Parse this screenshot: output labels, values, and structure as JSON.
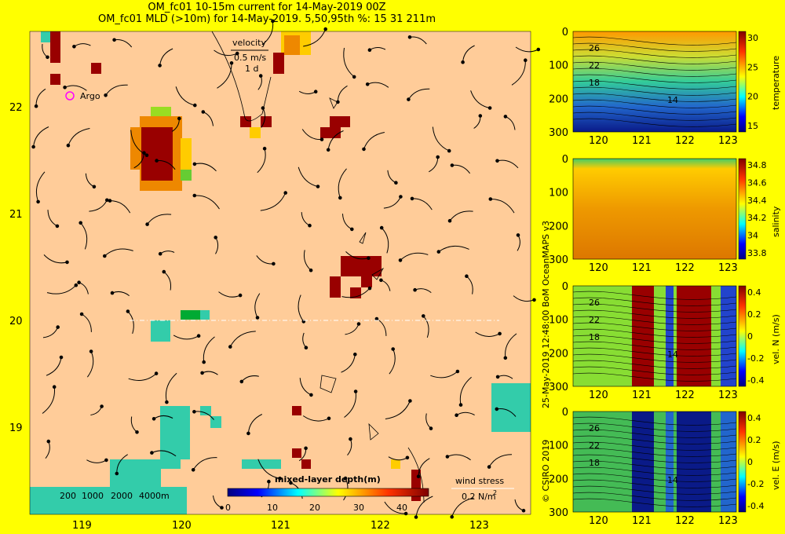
{
  "titles": {
    "line1": "OM_fc01 10-15m current for 14-May-2019 00Z",
    "line2": "OM_fc01 MLD (>10m) for 14-May-2019. 5,50,95th %: 15   31  211m"
  },
  "map": {
    "x_ticks": [
      "119",
      "120",
      "121",
      "122",
      "123"
    ],
    "y_ticks": [
      "22",
      "21",
      "20",
      "19"
    ],
    "velocity_label": "velocity",
    "velocity_scale": "0.5 m/s",
    "velocity_time": "1 d",
    "argo_label": "Argo",
    "wind_label": "wind stress",
    "wind_scale": "0.2 N/m",
    "wind_exp": "2",
    "depth_legend": [
      "200",
      "1000",
      "2000",
      "4000m"
    ],
    "colorbar_title": "mixed-layer depth(m)",
    "colorbar_ticks": [
      "0",
      "10",
      "20",
      "30",
      "40"
    ],
    "colors": {
      "land": "#ffff00",
      "ocean": "#ffcc99",
      "shallow": "#33ccaa",
      "deep": "#990000"
    }
  },
  "side_note": "25-May-2019 12:48:00 BoM OceanMAPS v3",
  "copyright": "© CSIRO 2019",
  "chart_data": [
    {
      "type": "heatmap",
      "ylabel_right": "temperature",
      "x_ticks": [
        "120",
        "121",
        "122",
        "123"
      ],
      "y_ticks": [
        "0",
        "100",
        "200",
        "300"
      ],
      "cbar_ticks": [
        "30",
        "25",
        "20",
        "15"
      ],
      "contour_labels": [
        "26",
        "22",
        "18",
        "14"
      ]
    },
    {
      "type": "heatmap",
      "ylabel_right": "salinity",
      "x_ticks": [
        "120",
        "121",
        "122",
        "123"
      ],
      "y_ticks": [
        "0",
        "100",
        "200",
        "300"
      ],
      "cbar_ticks": [
        "34.8",
        "34.6",
        "34.4",
        "34.2",
        "34",
        "33.8"
      ],
      "contour_labels": []
    },
    {
      "type": "heatmap",
      "ylabel_right": "vel. N (m/s)",
      "x_ticks": [
        "120",
        "121",
        "122",
        "123"
      ],
      "y_ticks": [
        "0",
        "100",
        "200",
        "300"
      ],
      "cbar_ticks": [
        "0.4",
        "0.2",
        "0",
        "-0.2",
        "-0.4"
      ],
      "contour_labels": [
        "26",
        "22",
        "18",
        "14"
      ]
    },
    {
      "type": "heatmap",
      "ylabel_right": "vel. E (m/s)",
      "x_ticks": [
        "120",
        "121",
        "122",
        "123"
      ],
      "y_ticks": [
        "0",
        "100",
        "200",
        "300"
      ],
      "cbar_ticks": [
        "0.4",
        "0.2",
        "0",
        "-0.2",
        "-0.4"
      ],
      "contour_labels": [
        "26",
        "22",
        "18",
        "14"
      ]
    }
  ]
}
